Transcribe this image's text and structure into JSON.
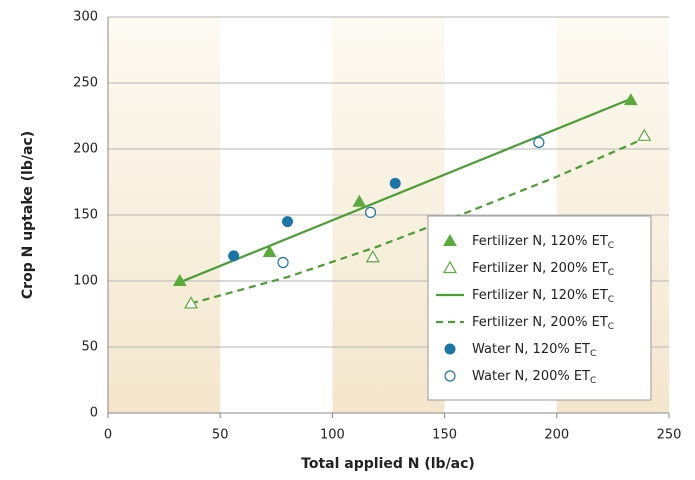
{
  "chart_data": {
    "type": "scatter",
    "x_label": "Total applied N (lb/ac)",
    "y_label": "Crop N uptake (lb/ac)",
    "xlim": [
      0,
      250
    ],
    "xticks": [
      0,
      50,
      100,
      150,
      200,
      250
    ],
    "ylim": [
      0,
      300
    ],
    "yticks": [
      0,
      50,
      100,
      150,
      200,
      250,
      300
    ],
    "grid": true,
    "legend": "lower right",
    "series": [
      {
        "name": "Fertilizer N, 120% ET",
        "name_sub": "C",
        "color": "#5aab3c",
        "marker": "triangle",
        "filled": true,
        "x": [
          32,
          72,
          112,
          233
        ],
        "values": [
          100,
          122,
          160,
          237
        ]
      },
      {
        "name": "Fertilizer N, 200% ET",
        "name_sub": "C",
        "color": "#5aab3c",
        "marker": "triangle",
        "filled": false,
        "x": [
          37,
          118,
          239
        ],
        "values": [
          83,
          118,
          210
        ]
      },
      {
        "name": "Fertilizer N, 120% ET",
        "name_sub": "C",
        "color": "#4a9e33",
        "line": "solid",
        "x": [
          32,
          233
        ],
        "values": [
          99,
          238
        ]
      },
      {
        "name": "Fertilizer N, 200% ET",
        "name_sub": "C",
        "color": "#4a9e33",
        "line": "dashed",
        "x": [
          37,
          80,
          120,
          160,
          200,
          239
        ],
        "values": [
          83,
          103,
          126,
          152,
          179,
          208
        ]
      },
      {
        "name": "Water N, 120% ET",
        "name_sub": "C",
        "color": "#1a75a8",
        "marker": "circle",
        "filled": true,
        "x": [
          56,
          80,
          128
        ],
        "values": [
          119,
          145,
          174
        ]
      },
      {
        "name": "Water N, 200% ET",
        "name_sub": "C",
        "color": "#1a75a8",
        "marker": "circle",
        "filled": false,
        "x": [
          78,
          117,
          192
        ],
        "values": [
          114,
          152,
          205
        ]
      }
    ]
  }
}
